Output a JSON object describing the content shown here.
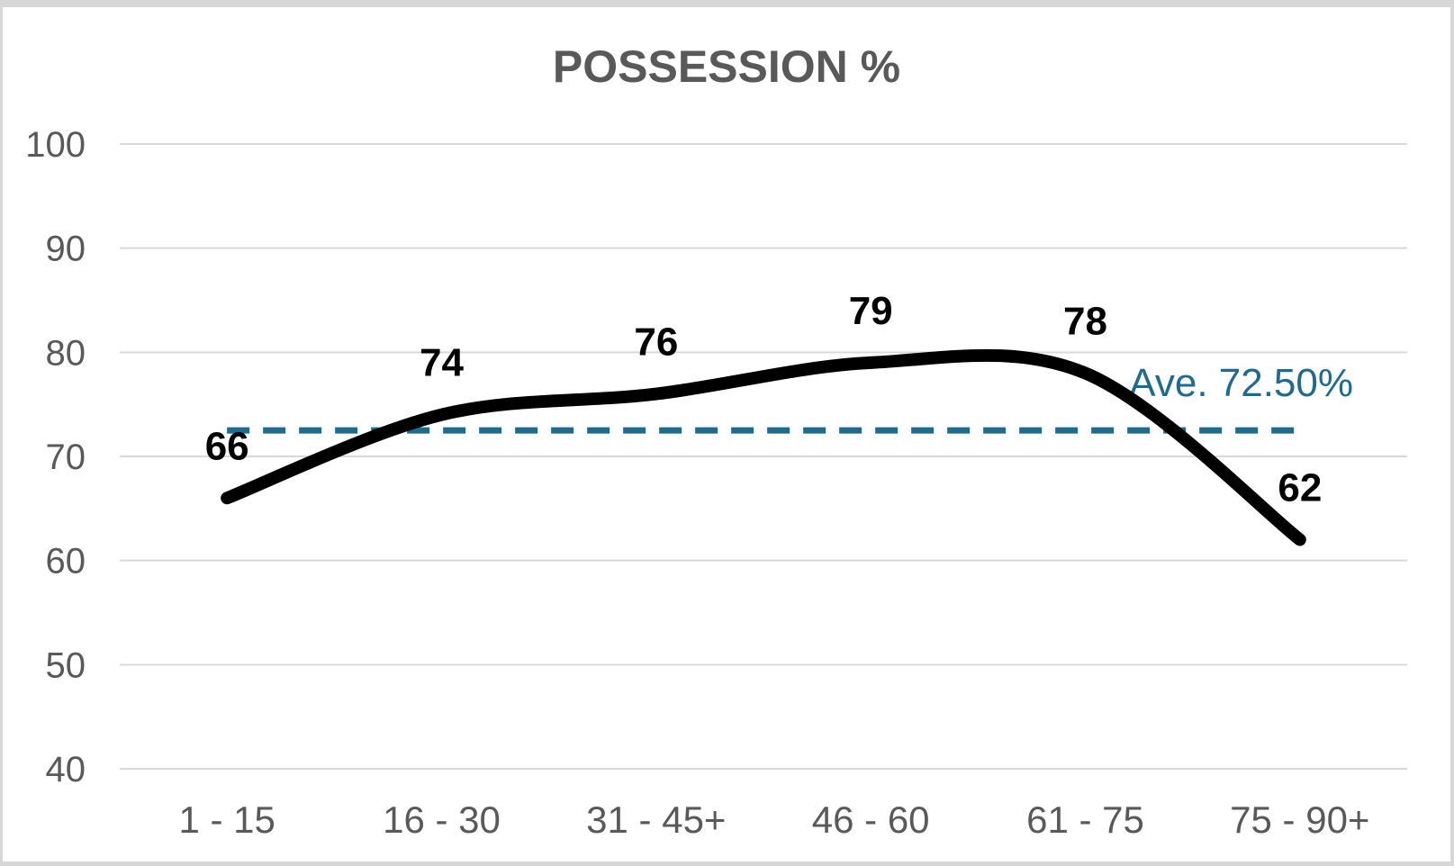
{
  "chart_data": {
    "type": "line",
    "title": "POSSESSION %",
    "categories": [
      "1 - 15",
      "16 - 30",
      "31 - 45+",
      "46 - 60",
      "61 - 75",
      "75 - 90+"
    ],
    "series": [
      {
        "name": "Possession %",
        "values": [
          66,
          74,
          76,
          79,
          78,
          62
        ]
      }
    ],
    "data_labels": [
      "66",
      "74",
      "76",
      "79",
      "78",
      "62"
    ],
    "average_line": {
      "value": 72.5,
      "label": "Ave. 72.50%"
    },
    "y_axis": {
      "min": 40,
      "max": 100,
      "step": 10,
      "ticks": [
        40,
        50,
        60,
        70,
        80,
        90,
        100
      ]
    },
    "x_axis": {
      "label": ""
    },
    "grid": true,
    "legend": "none",
    "smooth": true,
    "colors": {
      "line": "#000000",
      "data_label": "#000000",
      "average": "#1f6b8e",
      "gridline": "#d9d9d9",
      "axis_text": "#595959",
      "title": "#595959",
      "background": "#ffffff",
      "frame": "#d7d7d7"
    }
  }
}
